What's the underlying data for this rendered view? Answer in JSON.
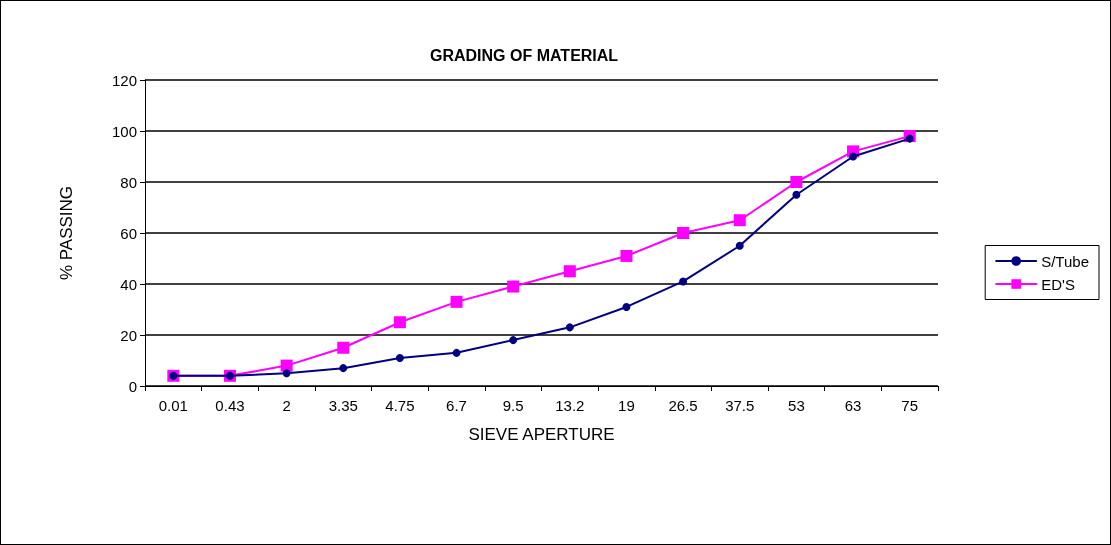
{
  "chart_data": {
    "type": "line",
    "title": "GRADING OF MATERIAL",
    "xlabel": "SIEVE APERTURE",
    "ylabel": "% PASSING",
    "categories": [
      "0.01",
      "0.43",
      "2",
      "3.35",
      "4.75",
      "6.7",
      "9.5",
      "13.2",
      "19",
      "26.5",
      "37.5",
      "53",
      "63",
      "75"
    ],
    "series": [
      {
        "name": "S/Tube",
        "color": "#000080",
        "marker": "circle",
        "values": [
          4,
          4,
          5,
          7,
          11,
          13,
          18,
          23,
          31,
          41,
          55,
          75,
          90,
          97
        ]
      },
      {
        "name": "ED'S",
        "color": "#ff00ff",
        "marker": "square",
        "values": [
          4,
          4,
          8,
          15,
          25,
          33,
          39,
          45,
          51,
          60,
          65,
          80,
          92,
          98
        ]
      }
    ],
    "ylim": [
      0,
      120
    ],
    "yticks": [
      0,
      20,
      40,
      60,
      80,
      100,
      120
    ],
    "grid": "y",
    "legend": "right",
    "line_style": "solid"
  }
}
